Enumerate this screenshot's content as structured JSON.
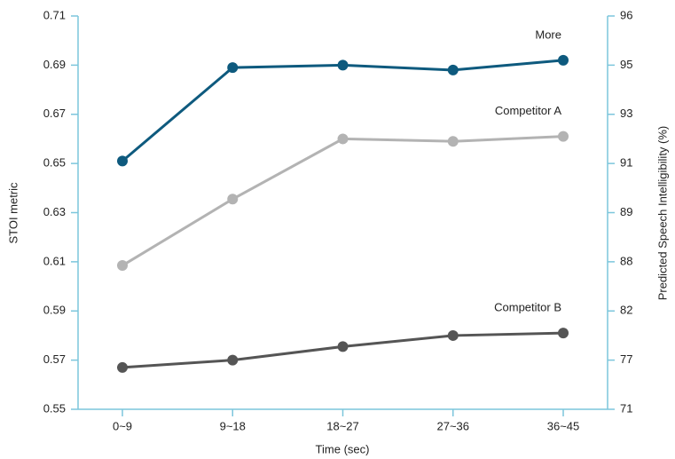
{
  "chart_data": {
    "type": "line",
    "x_label": "Time (sec)",
    "y_label": "STOI metric",
    "y2_label": "Predicted Speech Intelligibility (%)",
    "categories": [
      "0~9",
      "9~18",
      "18~27",
      "27~36",
      "36~45"
    ],
    "series": [
      {
        "name": "More",
        "color": "#0e5a7e",
        "values": [
          0.651,
          0.689,
          0.69,
          0.688,
          0.692
        ]
      },
      {
        "name": "Competitor A",
        "color": "#b3b3b3",
        "values": [
          0.6085,
          0.6355,
          0.66,
          0.659,
          0.661
        ]
      },
      {
        "name": "Competitor B",
        "color": "#555555",
        "values": [
          0.567,
          0.57,
          0.5755,
          0.58,
          0.581
        ]
      }
    ],
    "ylim": [
      0.55,
      0.71
    ],
    "yticks": [
      0.55,
      0.57,
      0.59,
      0.61,
      0.63,
      0.65,
      0.67,
      0.69,
      0.71
    ],
    "y2lim": [
      71,
      96
    ],
    "y2ticks": [
      71,
      77,
      82,
      88,
      89,
      91,
      93,
      95,
      96
    ],
    "y2_scale": "aligned_to_yticks",
    "axis_color": "#7cc6dc",
    "grid": false
  }
}
